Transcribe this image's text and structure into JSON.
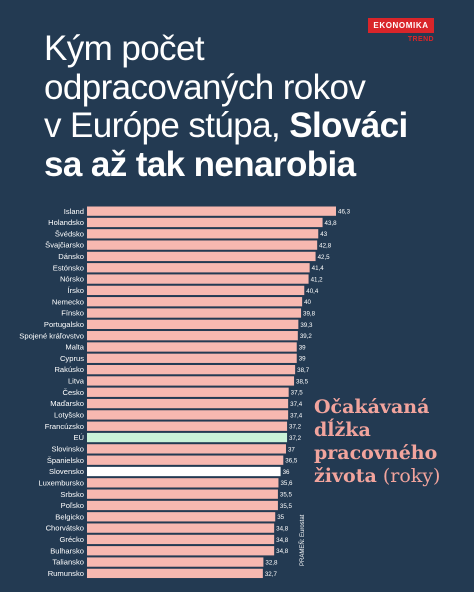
{
  "header": {
    "title_line1": "Kým počet",
    "title_line2": "odpracovaných rokov",
    "title_line3_normal": "v Európe stúpa, ",
    "title_line3_bold": "Slováci",
    "title_line4_bold": "sa až tak nenarobia"
  },
  "logo": {
    "top": "EKONOMIKA",
    "bottom": "TREND"
  },
  "annotation": {
    "bold": "Očakávaná dĺžka pracovného života",
    "normal": " (roky)"
  },
  "source": "PRAMEŇ: Eurostat",
  "colors": {
    "background": "#233a52",
    "bar": "#f7b8b0",
    "eu": "#c9f3d8",
    "slovakia": "#ffffff",
    "label": "#ffffff",
    "title": "#ffffff",
    "accent": "#d9252a",
    "annotation": "#f2a49d"
  },
  "chart_data": {
    "type": "bar",
    "orientation": "horizontal",
    "categories": [
      "Island",
      "Holandsko",
      "Švédsko",
      "Švajčiarsko",
      "Dánsko",
      "Estónsko",
      "Nórsko",
      "Írsko",
      "Nemecko",
      "Fínsko",
      "Portugalsko",
      "Spojené kráľovstvo",
      "Malta",
      "Cyprus",
      "Rakúsko",
      "Litva",
      "Česko",
      "Maďarsko",
      "Lotyšsko",
      "Francúzsko",
      "EÚ",
      "Slovinsko",
      "Španielsko",
      "Slovensko",
      "Luxembursko",
      "Srbsko",
      "Poľsko",
      "Belgicko",
      "Chorvátsko",
      "Grécko",
      "Bulharsko",
      "Taliansko",
      "Rumunsko"
    ],
    "values": [
      46.3,
      43.8,
      43,
      42.8,
      42.5,
      41.4,
      41.2,
      40.4,
      40,
      39.8,
      39.3,
      39.2,
      39,
      39,
      38.7,
      38.5,
      37.5,
      37.4,
      37.4,
      37.2,
      37.2,
      37,
      36.5,
      36,
      35.6,
      35.5,
      35.5,
      35,
      34.8,
      34.8,
      34.8,
      32.8,
      32.7
    ],
    "value_labels": [
      "46,3",
      "43,8",
      "43",
      "42,8",
      "42,5",
      "41,4",
      "41,2",
      "40,4",
      "40",
      "39,8",
      "39,3",
      "39,2",
      "39",
      "39",
      "38,7",
      "38,5",
      "37,5",
      "37,4",
      "37,4",
      "37,2",
      "37,2",
      "37",
      "36,5",
      "36",
      "35,6",
      "35,5",
      "35,5",
      "35",
      "34,8",
      "34,8",
      "34,8",
      "32,8",
      "32,7"
    ],
    "highlight": {
      "EÚ": "eu",
      "Slovensko": "slovakia"
    },
    "xlim": [
      0,
      46.3
    ]
  }
}
